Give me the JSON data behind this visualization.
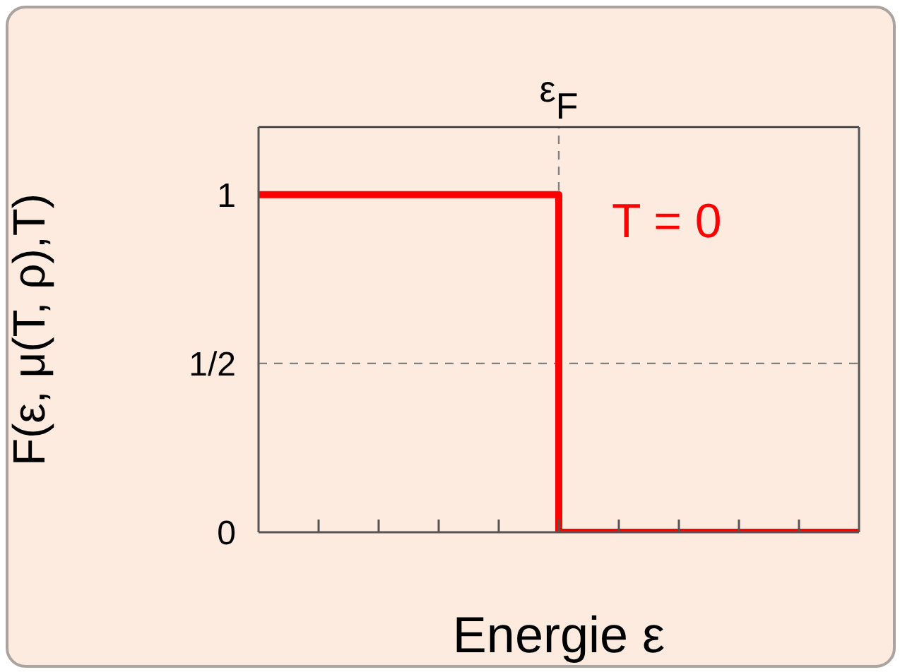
{
  "chart_data": {
    "type": "step",
    "xlabel": "Energie ε",
    "ylabel": "F(ε, μ(T, ρ),T)",
    "categories": [
      null,
      null,
      null,
      null,
      null,
      "ε$_{F}$",
      null,
      null,
      null,
      null,
      null
    ],
    "ylim": [
      0,
      1.2
    ],
    "yticks": [
      0,
      {
        "value": 0.5,
        "label": "1/2"
      },
      1
    ],
    "series": [
      {
        "name": "T = 0",
        "color": "#ff0000",
        "values": [
          1,
          1,
          1,
          1,
          1,
          0,
          0,
          0,
          0,
          0,
          0
        ]
      }
    ],
    "ref_lines": [
      {
        "axis": "x",
        "value": "ε$_{F}$",
        "line_style": "dashed",
        "color": "#808080"
      },
      {
        "axis": "y",
        "value": 0.5,
        "line_style": "dashed",
        "color": "#808080"
      }
    ],
    "grid": false,
    "legend": false,
    "marker": "none",
    "line_style": "solid"
  }
}
